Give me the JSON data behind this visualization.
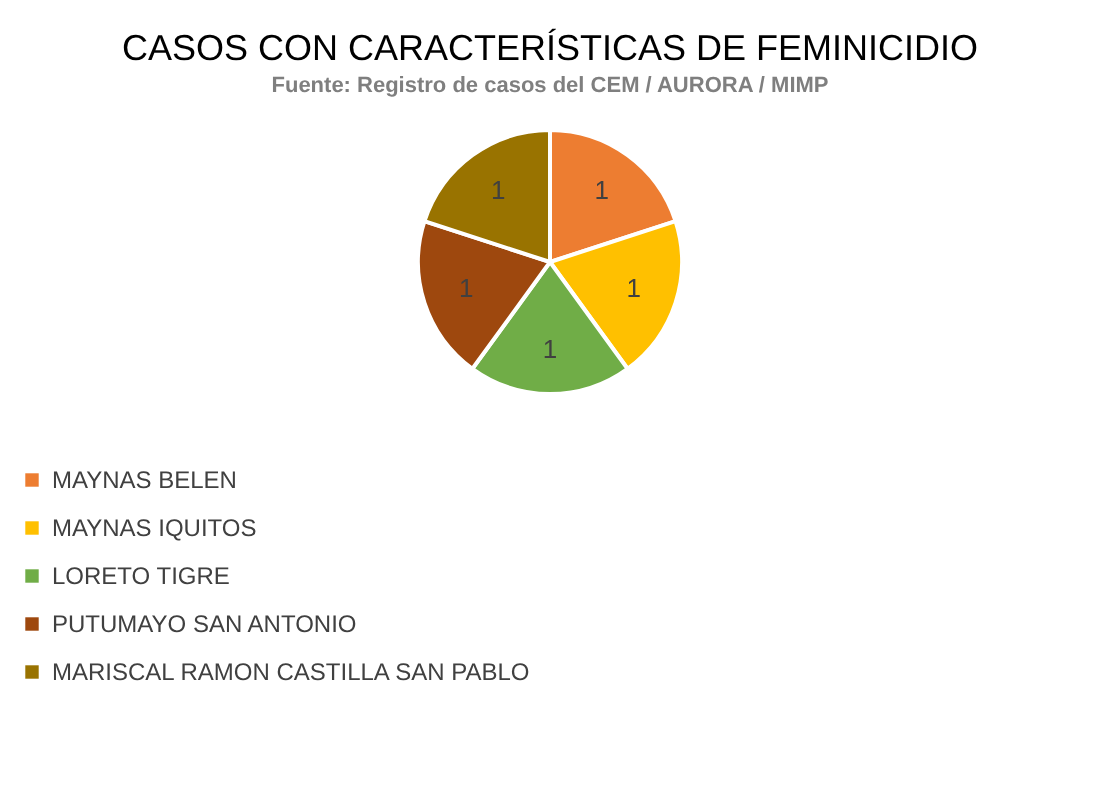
{
  "chart_data": {
    "type": "pie",
    "title": "CASOS CON CARACTERÍSTICAS DE FEMINICIDIO",
    "subtitle": "Fuente: Registro de casos del CEM / AURORA / MIMP",
    "categories": [
      "MAYNAS BELEN",
      "MAYNAS IQUITOS",
      "LORETO  TIGRE",
      "PUTUMAYO  SAN ANTONIO",
      "MARISCAL RAMON CASTILLA SAN PABLO"
    ],
    "values": [
      1,
      1,
      1,
      1,
      1
    ],
    "colors": [
      "#ed7d31",
      "#ffc000",
      "#70ad47",
      "#9e480e",
      "#997300"
    ],
    "data_labels": true,
    "legend": "bottom"
  }
}
